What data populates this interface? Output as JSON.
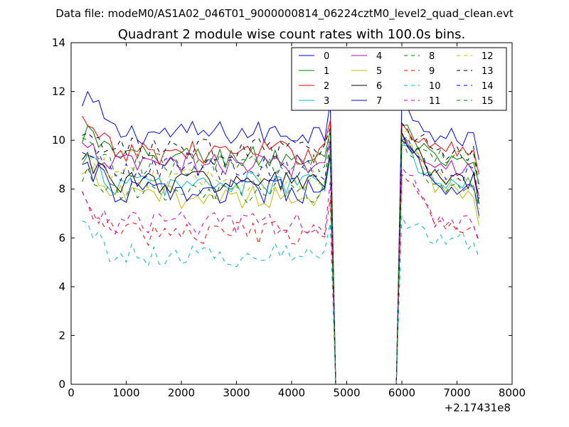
{
  "figure": {
    "suptitle": "Data file: modeM0/AS1A02_046T01_9000000814_06224cztM0_level2_quad_clean.evt"
  },
  "chart_data": {
    "type": "line",
    "title": "Quadrant 2 module wise count rates with 100.0s bins.",
    "xlabel": "",
    "ylabel": "",
    "xlim": [
      0,
      8000
    ],
    "ylim": [
      0,
      14
    ],
    "x_offset_label": "+2.17431e8",
    "xticks": [
      0,
      1000,
      2000,
      3000,
      4000,
      5000,
      6000,
      7000,
      8000
    ],
    "xtick_labels": [
      "0",
      "1000",
      "2000",
      "3000",
      "4000",
      "5000",
      "6000",
      "7000",
      "8000"
    ],
    "yticks": [
      0,
      2,
      4,
      6,
      8,
      10,
      12,
      14
    ],
    "ytick_labels": [
      "0",
      "2",
      "4",
      "6",
      "8",
      "10",
      "12",
      "14"
    ],
    "grid": false,
    "legend": {
      "placement": "top-right",
      "columns": 4
    },
    "x": {
      "start": 200,
      "end": 7400,
      "step": 100
    },
    "gap": {
      "last_before": 4700,
      "zero_from": 4800,
      "zero_to": 5900,
      "first_after": 6000
    },
    "series": [
      {
        "name": "0",
        "color": "#0000ff",
        "dash": "solid",
        "level": 10.3,
        "spike_before": 11.6,
        "spike_after": 11.7,
        "first": 11.4,
        "second": 12.0,
        "end_level": 10.1,
        "last": 9.2
      },
      {
        "name": "1",
        "color": "#008000",
        "dash": "solid",
        "level": 9.3,
        "spike_before": 10.4,
        "spike_after": 10.6,
        "first": 9.9,
        "second": 10.6,
        "end_level": 9.0,
        "last": 8.2
      },
      {
        "name": "2",
        "color": "#ff0000",
        "dash": "solid",
        "level": 9.5,
        "spike_before": 10.8,
        "spike_after": 10.7,
        "first": 11.0,
        "second": 10.6,
        "end_level": 9.6,
        "last": 8.6
      },
      {
        "name": "3",
        "color": "#00bfbf",
        "dash": "solid",
        "level": 8.2,
        "spike_before": 9.3,
        "spike_after": 9.8,
        "first": 9.0,
        "second": 9.4,
        "end_level": 8.1,
        "last": 7.4
      },
      {
        "name": "4",
        "color": "#bf00bf",
        "dash": "solid",
        "level": 9.0,
        "spike_before": 10.0,
        "spike_after": 10.3,
        "first": 9.9,
        "second": 9.7,
        "end_level": 8.9,
        "last": 7.7
      },
      {
        "name": "5",
        "color": "#bfbf00",
        "dash": "solid",
        "level": 7.7,
        "spike_before": 9.6,
        "spike_after": 10.0,
        "first": 8.6,
        "second": 8.8,
        "end_level": 8.0,
        "last": 6.5
      },
      {
        "name": "6",
        "color": "#000000",
        "dash": "solid",
        "level": 8.3,
        "spike_before": 9.5,
        "spike_after": 10.3,
        "first": 9.2,
        "second": 9.5,
        "end_level": 8.3,
        "last": 7.4
      },
      {
        "name": "7",
        "color": "#0000ff",
        "dash": "solid",
        "level": 7.9,
        "spike_before": 9.4,
        "spike_after": 10.0,
        "first": 9.0,
        "second": 9.1,
        "end_level": 7.9,
        "last": 6.9
      },
      {
        "name": "8",
        "color": "#008000",
        "dash": "dashed",
        "level": 7.8,
        "spike_before": 9.3,
        "spike_after": 10.1,
        "first": 8.3,
        "second": 8.9,
        "end_level": 8.0,
        "last": 7.2
      },
      {
        "name": "9",
        "color": "#ff0000",
        "dash": "dashed",
        "level": 6.2,
        "spike_before": 7.6,
        "spike_after": 8.6,
        "first": 7.9,
        "second": 7.4,
        "end_level": 6.5,
        "last": 5.8
      },
      {
        "name": "10",
        "color": "#00bfbf",
        "dash": "dashed",
        "level": 5.3,
        "spike_before": 6.6,
        "spike_after": 6.9,
        "first": 6.7,
        "second": 6.6,
        "end_level": 5.9,
        "last": 5.2
      },
      {
        "name": "11",
        "color": "#bf00bf",
        "dash": "dashed",
        "level": 6.6,
        "spike_before": 8.3,
        "spike_after": 8.9,
        "first": 7.9,
        "second": 7.4,
        "end_level": 6.7,
        "last": 5.9
      },
      {
        "name": "12",
        "color": "#bfbf00",
        "dash": "dashed",
        "level": 8.4,
        "spike_before": 9.6,
        "spike_after": 10.3,
        "first": 9.0,
        "second": 9.5,
        "end_level": 8.4,
        "last": 6.8
      },
      {
        "name": "13",
        "color": "#000000",
        "dash": "dashed",
        "level": 9.6,
        "spike_before": 10.5,
        "spike_after": 10.7,
        "first": 10.2,
        "second": 10.3,
        "end_level": 9.4,
        "last": 8.0
      },
      {
        "name": "14",
        "color": "#0000ff",
        "dash": "dashed",
        "level": 8.8,
        "spike_before": 9.9,
        "spike_after": 10.0,
        "first": 9.5,
        "second": 9.4,
        "end_level": 8.6,
        "last": 7.6
      },
      {
        "name": "15",
        "color": "#008000",
        "dash": "dashed",
        "level": 9.0,
        "spike_before": 10.4,
        "spike_after": 10.2,
        "first": 10.1,
        "second": 10.0,
        "end_level": 9.3,
        "last": 8.1
      }
    ]
  }
}
